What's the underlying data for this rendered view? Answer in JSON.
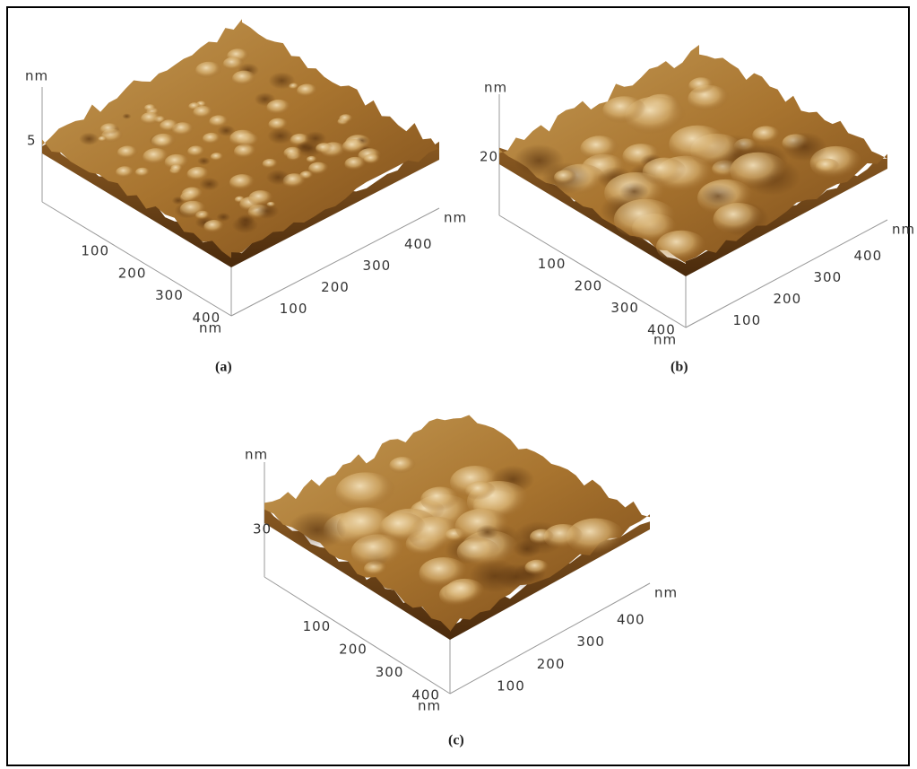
{
  "panels": [
    {
      "label": "(a)",
      "z_unit": "nm",
      "z_tick": "5",
      "x_unit": "nm",
      "y_unit": "nm",
      "x_ticks": [
        "100",
        "200",
        "300",
        "400"
      ],
      "y_ticks": [
        "100",
        "200",
        "300",
        "400"
      ]
    },
    {
      "label": "(b)",
      "z_unit": "nm",
      "z_tick": "20",
      "x_unit": "nm",
      "y_unit": "nm",
      "x_ticks": [
        "100",
        "200",
        "300",
        "400"
      ],
      "y_ticks": [
        "100",
        "200",
        "300",
        "400"
      ]
    },
    {
      "label": "(c)",
      "z_unit": "nm",
      "z_tick": "30",
      "x_unit": "nm",
      "y_unit": "nm",
      "x_ticks": [
        "100",
        "200",
        "300",
        "400"
      ],
      "y_ticks": [
        "100",
        "200",
        "300",
        "400"
      ]
    }
  ]
}
